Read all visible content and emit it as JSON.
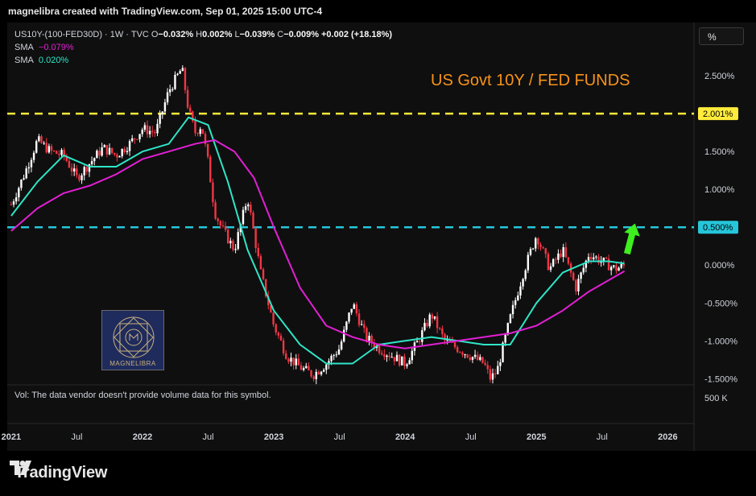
{
  "header": {
    "created_by": "magnelibra created with TradingView.com, Sep 01, 2025 15:00 UTC-4"
  },
  "legend": {
    "symbol_line": [
      "US10Y-(100-FED30D)",
      "·",
      "1W",
      "·",
      "TVC",
      "O",
      "−0.032%",
      "H",
      "0.002%",
      "L",
      "−0.039%",
      "C",
      "−0.009%",
      "+0.002 (+18.18%)"
    ],
    "sma1_label": "SMA",
    "sma1_value": "−0.079%",
    "sma2_label": "SMA",
    "sma2_value": "0.020%"
  },
  "scale_button": "%",
  "volume_note": "Vol: The data vendor doesn't provide volume data for this symbol.",
  "volume_axis_label": "500 K",
  "logo_text": "MAGNELIBRA",
  "footer": {
    "brand": "TradingView"
  },
  "colors": {
    "up": "#ffffff",
    "down": "#f23645",
    "sma_fast": "#2ee6c8",
    "sma_slow": "#e21fd4",
    "title": "#f7931a",
    "line_yellow": "#ffeb3b",
    "line_cyan": "#26c6da",
    "arrow": "#3ef01e"
  },
  "chart_data": {
    "type": "line",
    "title": "US Govt 10Y / FED FUNDS",
    "y_unit": "%",
    "ylim": [
      -1.55,
      2.65
    ],
    "y_ticks": [
      "2.500%",
      "2.000%",
      "1.500%",
      "1.000%",
      "0.500%",
      "0.000%",
      "-0.500%",
      "-1.000%",
      "-1.500%"
    ],
    "y_tick_values": [
      2.5,
      2.0,
      1.5,
      1.0,
      0.5,
      0.0,
      -0.5,
      -1.0,
      -1.5
    ],
    "x_ticks": [
      "2021",
      "Jul",
      "2022",
      "Jul",
      "2023",
      "Jul",
      "2024",
      "Jul",
      "2025",
      "Jul",
      "2026"
    ],
    "x_tick_values": [
      2021.0,
      2021.5,
      2022.0,
      2022.5,
      2023.0,
      2023.5,
      2024.0,
      2024.5,
      2025.0,
      2025.5,
      2026.0
    ],
    "xlim": [
      2020.97,
      2026.2
    ],
    "horizontal_lines": [
      {
        "value": 2.0,
        "label": "2.001%",
        "style": "dashed"
      },
      {
        "value": 0.5,
        "label": "0.500%",
        "style": "dashed"
      }
    ],
    "price": {
      "x": [
        2021.0,
        2021.1,
        2021.2,
        2021.3,
        2021.4,
        2021.5,
        2021.6,
        2021.7,
        2021.8,
        2021.9,
        2022.0,
        2022.1,
        2022.2,
        2022.3,
        2022.35,
        2022.4,
        2022.45,
        2022.5,
        2022.55,
        2022.6,
        2022.7,
        2022.8,
        2022.9,
        2023.0,
        2023.1,
        2023.2,
        2023.3,
        2023.4,
        2023.5,
        2023.6,
        2023.7,
        2023.8,
        2023.9,
        2024.0,
        2024.1,
        2024.2,
        2024.3,
        2024.4,
        2024.5,
        2024.6,
        2024.65,
        2024.7,
        2024.8,
        2024.9,
        2025.0,
        2025.1,
        2025.2,
        2025.3,
        2025.4,
        2025.5,
        2025.6,
        2025.67
      ],
      "y": [
        0.8,
        1.2,
        1.65,
        1.5,
        1.45,
        1.15,
        1.35,
        1.55,
        1.45,
        1.6,
        1.8,
        1.75,
        2.3,
        2.6,
        2.05,
        1.75,
        1.85,
        1.35,
        0.7,
        0.5,
        0.2,
        0.9,
        -0.1,
        -0.8,
        -1.2,
        -1.35,
        -1.45,
        -1.3,
        -1.1,
        -0.5,
        -0.95,
        -1.1,
        -1.2,
        -1.3,
        -1.0,
        -0.65,
        -1.0,
        -1.1,
        -1.2,
        -1.3,
        -1.5,
        -1.4,
        -0.7,
        -0.1,
        0.4,
        -0.05,
        0.2,
        -0.3,
        0.15,
        0.05,
        -0.05,
        -0.01
      ]
    },
    "series": [
      {
        "name": "SMA",
        "color": "#2ee6c8",
        "x": [
          2021.0,
          2021.2,
          2021.4,
          2021.6,
          2021.8,
          2022.0,
          2022.2,
          2022.35,
          2022.5,
          2022.65,
          2022.8,
          2023.0,
          2023.2,
          2023.4,
          2023.6,
          2023.8,
          2024.0,
          2024.2,
          2024.4,
          2024.6,
          2024.8,
          2025.0,
          2025.2,
          2025.4,
          2025.55,
          2025.67
        ],
        "y": [
          0.65,
          1.1,
          1.45,
          1.3,
          1.3,
          1.5,
          1.6,
          1.95,
          1.85,
          1.1,
          0.2,
          -0.6,
          -1.05,
          -1.3,
          -1.3,
          -1.05,
          -1.0,
          -0.95,
          -1.0,
          -1.05,
          -1.05,
          -0.5,
          -0.1,
          0.05,
          0.05,
          0.02
        ]
      },
      {
        "name": "SMA",
        "color": "#e21fd4",
        "x": [
          2021.0,
          2021.2,
          2021.4,
          2021.6,
          2021.8,
          2022.0,
          2022.2,
          2022.4,
          2022.55,
          2022.7,
          2022.85,
          2023.0,
          2023.2,
          2023.4,
          2023.6,
          2023.8,
          2024.0,
          2024.2,
          2024.4,
          2024.6,
          2024.8,
          2025.0,
          2025.2,
          2025.4,
          2025.55,
          2025.67
        ],
        "y": [
          0.45,
          0.75,
          0.95,
          1.05,
          1.2,
          1.4,
          1.5,
          1.6,
          1.65,
          1.5,
          1.15,
          0.5,
          -0.3,
          -0.8,
          -0.95,
          -1.05,
          -1.1,
          -1.05,
          -1.0,
          -0.95,
          -0.9,
          -0.8,
          -0.6,
          -0.35,
          -0.2,
          -0.08
        ]
      }
    ],
    "annotation": {
      "type": "arrow",
      "from": [
        2025.69,
        0.15
      ],
      "to": [
        2025.75,
        0.55
      ],
      "color": "#3ef01e"
    }
  }
}
